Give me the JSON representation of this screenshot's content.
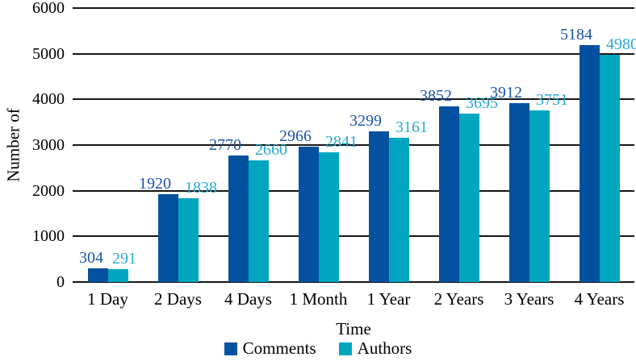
{
  "chart_data": {
    "type": "bar",
    "title": "",
    "categories": [
      "1 Day",
      "2 Days",
      "4 Days",
      "1 Month",
      "1 Year",
      "2 Years",
      "3 Years",
      "4 Years"
    ],
    "series": [
      {
        "name": "Comments",
        "color": "#04519F",
        "label_color": "#1C55A8",
        "values": [
          304,
          1920,
          2770,
          2966,
          3299,
          3852,
          3912,
          5184
        ]
      },
      {
        "name": "Authors",
        "color": "#00A6BF",
        "label_color": "#2AA9CC",
        "values": [
          291,
          1838,
          2660,
          2841,
          3161,
          3695,
          3751,
          4980
        ]
      }
    ],
    "xlabel": "Time",
    "ylabel": "Number of",
    "ylim": [
      0,
      6000
    ],
    "ytick_interval": 1000,
    "yticks": [
      "0",
      "1000",
      "2000",
      "3000",
      "4000",
      "5000",
      "6000"
    ],
    "grid": true,
    "gridline_color": "#161616",
    "data_labels": true,
    "legend_position": "bottom"
  }
}
